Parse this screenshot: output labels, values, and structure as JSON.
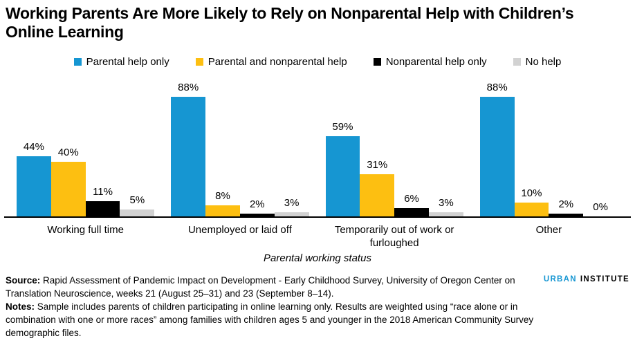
{
  "header": {
    "title_line1": "Working Parents Are More Likely to Rely on Nonparental Help with Children’s",
    "title_line2": "Online Learning"
  },
  "chart_data": {
    "type": "bar",
    "title": "Working Parents Are More Likely to Rely on Nonparental Help with Children’s Online Learning",
    "categories": [
      "Working full time",
      "Unemployed or laid off",
      "Temporarily out of work or furloughed",
      "Other"
    ],
    "series": [
      {
        "name": "Parental help only",
        "color": "#1696d2",
        "values": [
          44,
          88,
          59,
          88
        ]
      },
      {
        "name": "Parental and nonparental help",
        "color": "#fdbf11",
        "values": [
          40,
          8,
          31,
          10
        ]
      },
      {
        "name": "Nonparental help only",
        "color": "#000000",
        "values": [
          11,
          2,
          6,
          2
        ]
      },
      {
        "name": "No help",
        "color": "#d2d2d2",
        "values": [
          5,
          3,
          3,
          0
        ]
      }
    ],
    "xlabel": "Parental working status",
    "ylabel": "",
    "ylim": [
      0,
      100
    ],
    "value_label_format": "{value}%",
    "grid": false,
    "legend_position": "top"
  },
  "footer": {
    "source_label": "Source:",
    "source_text": " Rapid Assessment of Pandemic Impact on Development - Early Childhood Survey, University of Oregon Center on Translation Neuroscience, weeks 21 (August 25–31) and 23 (September 8–14).",
    "notes_label": "Notes:",
    "notes_text": " Sample includes parents of children participating in online learning only. Results are weighted using “race alone or in combination with one or more races” among families with children ages 5 and younger in the 2018 American Community Survey demographic files.",
    "logo": {
      "part1": "URBAN",
      "part2": "INSTITUTE",
      "part1_color": "#1696d2",
      "part2_color": "#000000"
    }
  }
}
